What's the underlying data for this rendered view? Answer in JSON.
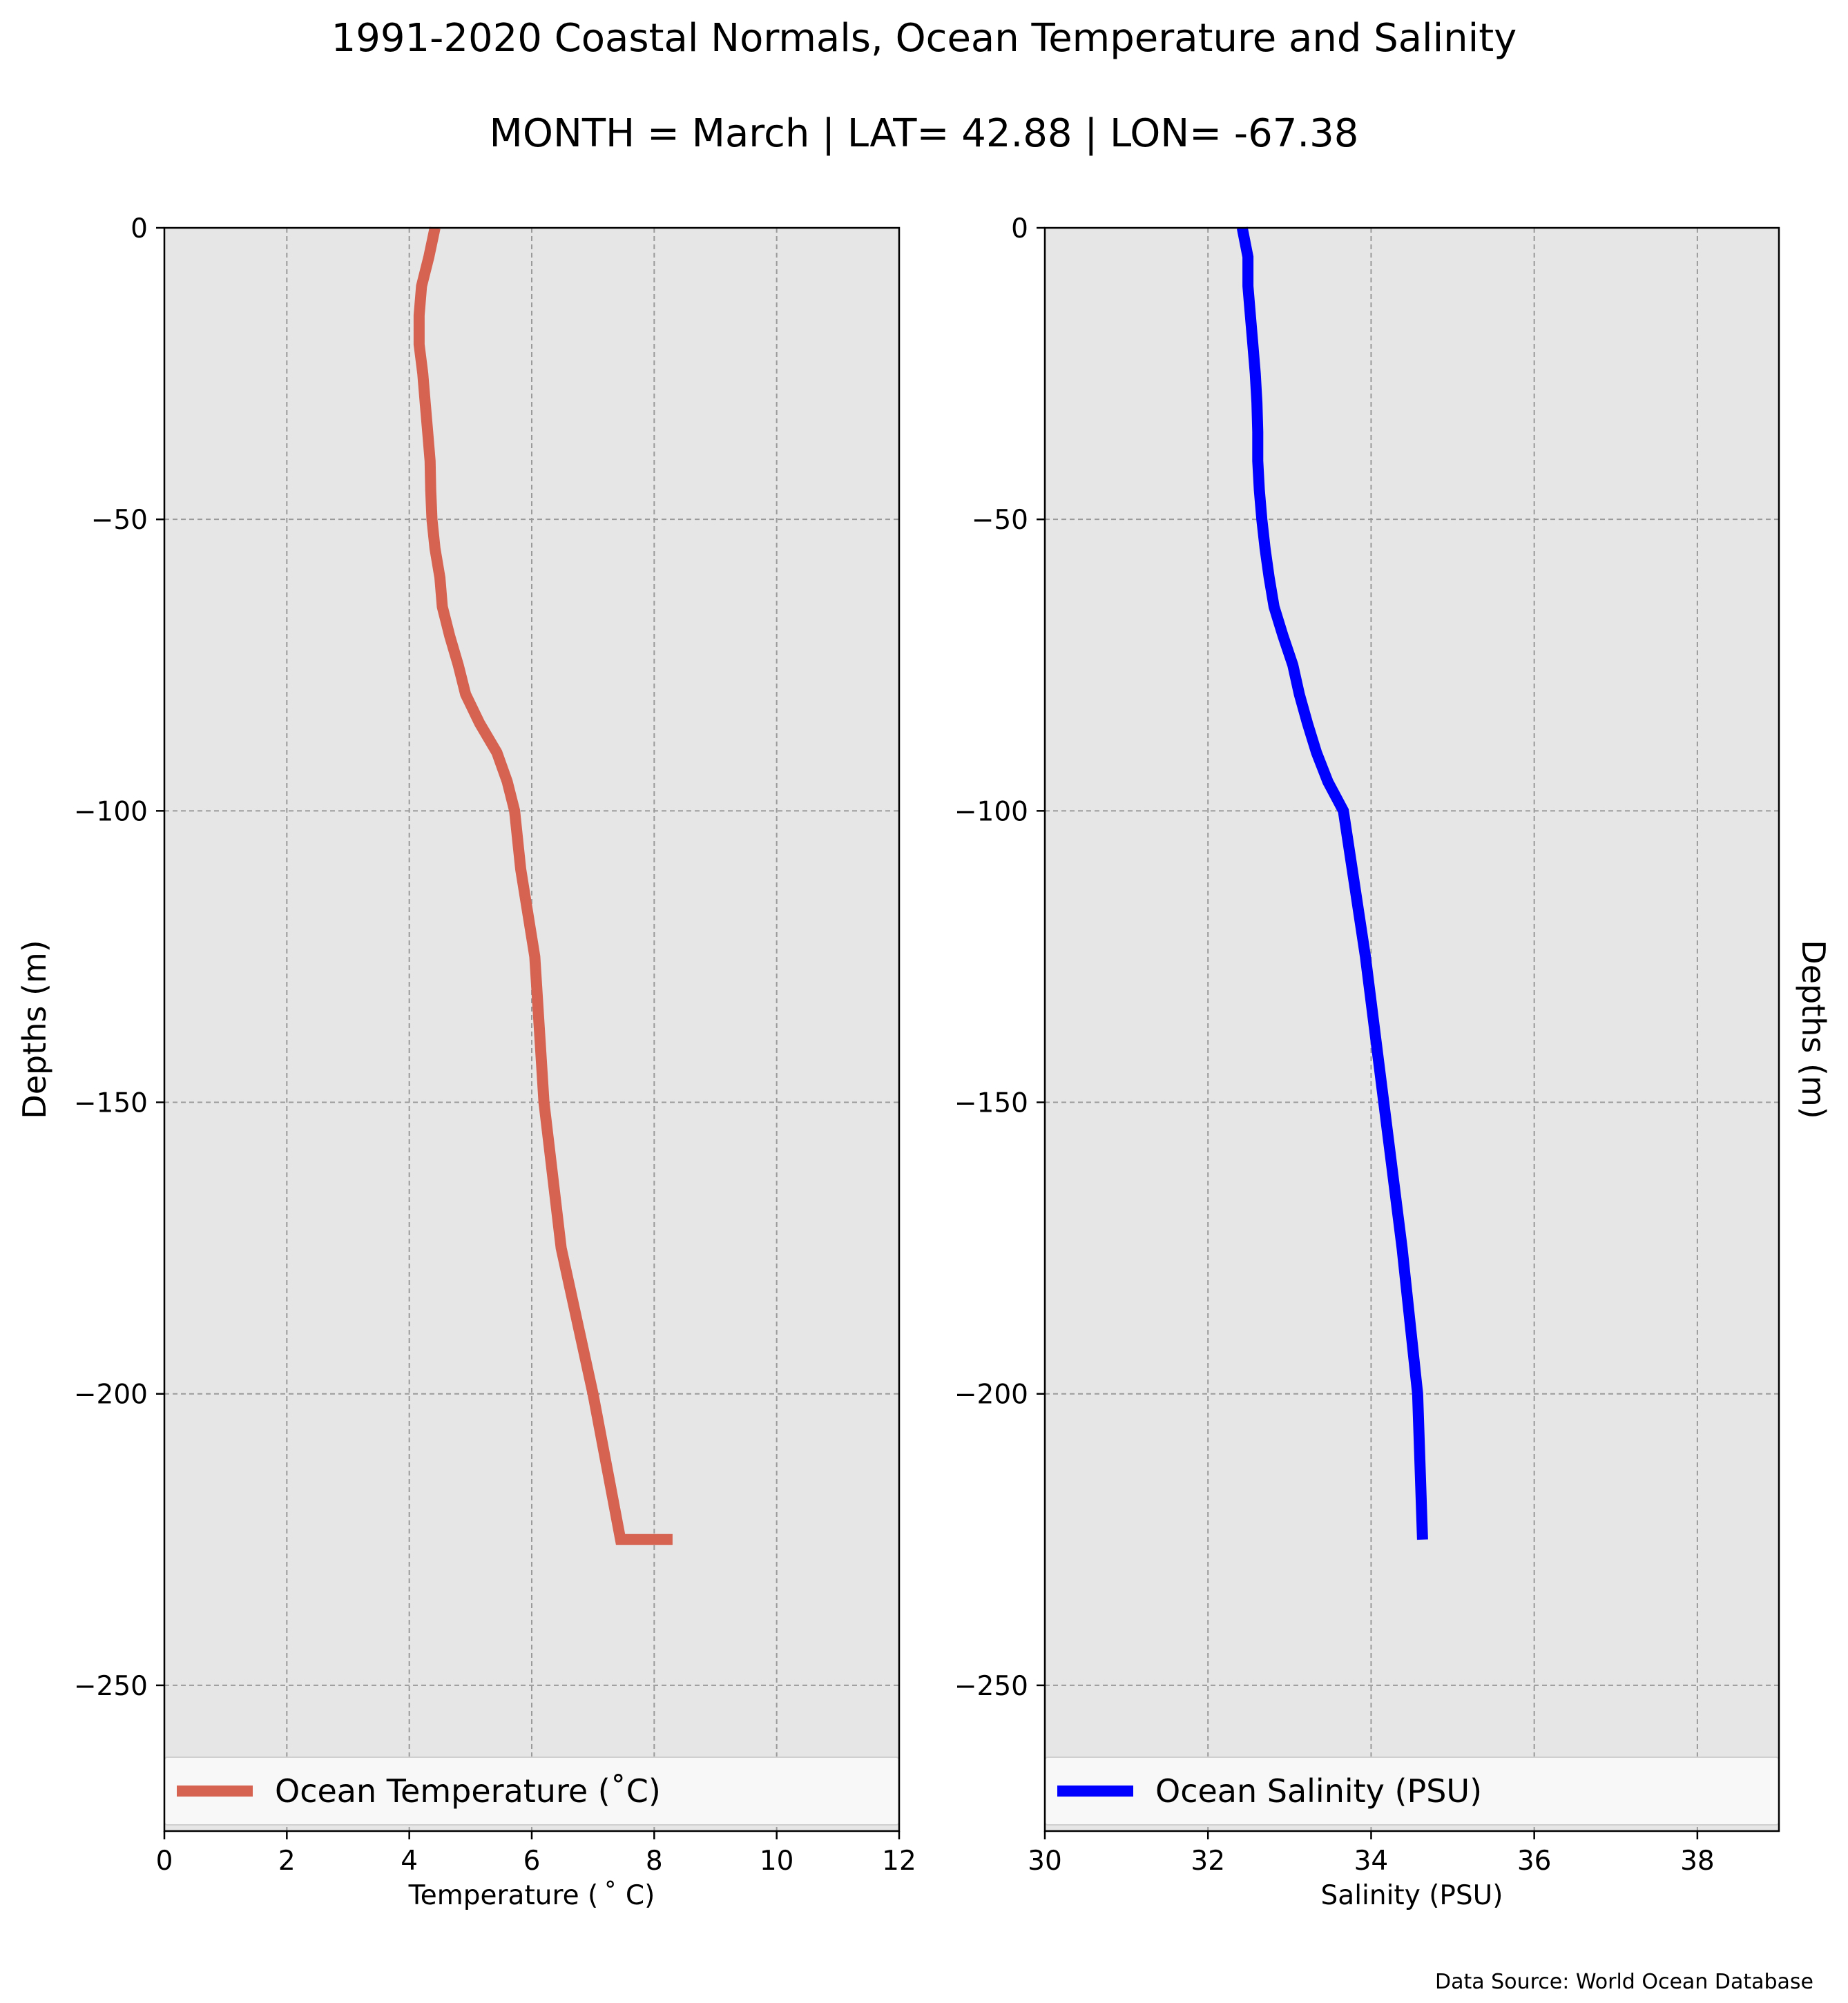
{
  "title": "1991-2020 Coastal Normals, Ocean Temperature and Salinity",
  "subtitle": "MONTH = March | LAT= 42.88 | LON= -67.38",
  "footer": "Data Source: World Ocean Database",
  "colors": {
    "temperature": "#d66352",
    "salinity": "#0000ff",
    "plot_background": "#e6e6e6",
    "grid": "#9a9a9a"
  },
  "chart_data": [
    {
      "type": "line",
      "xlabel": "Temperature ($^\\circ$C)",
      "xlabel_display": "Temperature ( ˚ C)",
      "ylabel": "Depths (m)",
      "xlim": [
        0,
        12
      ],
      "ylim": [
        -275,
        0
      ],
      "x_ticks": [
        0,
        2,
        4,
        6,
        8,
        10,
        12
      ],
      "y_ticks": [
        0,
        -50,
        -100,
        -150,
        -200,
        -250
      ],
      "grid": true,
      "legend": "lower-center",
      "legend_label": "Ocean Temperature (˚C)",
      "series": [
        {
          "name": "Ocean Temperature (˚C)",
          "x": [
            4.42,
            4.32,
            4.2,
            4.16,
            4.16,
            4.22,
            4.26,
            4.3,
            4.34,
            4.35,
            4.37,
            4.42,
            4.5,
            4.54,
            4.66,
            4.8,
            4.92,
            5.15,
            5.43,
            5.6,
            5.72,
            5.82,
            6.05,
            6.2,
            6.48,
            7.0,
            7.45,
            7.98,
            8.1,
            8.14,
            8.3,
            8.03,
            7.87
          ],
          "y": [
            0,
            -5,
            -10,
            -15,
            -20,
            -25,
            -30,
            -35,
            -40,
            -45,
            -50,
            -55,
            -60,
            -65,
            -70,
            -75,
            -80,
            -85,
            -90,
            -95,
            -100,
            -110,
            -125,
            -150,
            -175,
            -200,
            -225,
            -225,
            -225,
            -225,
            -225,
            -225,
            -225
          ]
        }
      ]
    },
    {
      "type": "line",
      "xlabel": "Salinity (PSU)",
      "ylabel": "Depths (m)",
      "xlim": [
        30,
        39
      ],
      "ylim": [
        -275,
        0
      ],
      "x_ticks": [
        30,
        32,
        34,
        36,
        38
      ],
      "y_ticks": [
        0,
        -50,
        -100,
        -150,
        -200,
        -250
      ],
      "grid": true,
      "legend": "lower-center",
      "legend_label": "Ocean Salinity (PSU)",
      "series": [
        {
          "name": "Ocean Salinity (PSU)",
          "x": [
            32.42,
            32.49,
            32.49,
            32.52,
            32.55,
            32.58,
            32.6,
            32.61,
            32.61,
            32.63,
            32.66,
            32.7,
            32.75,
            32.81,
            32.92,
            33.04,
            33.12,
            33.22,
            33.33,
            33.47,
            33.66,
            33.93,
            34.38,
            34.57,
            34.63
          ],
          "y": [
            0,
            -5,
            -10,
            -15,
            -20,
            -25,
            -30,
            -35,
            -40,
            -45,
            -50,
            -55,
            -60,
            -65,
            -70,
            -75,
            -80,
            -85,
            -90,
            -95,
            -100,
            -125,
            -175,
            -200,
            -225
          ]
        }
      ]
    }
  ]
}
